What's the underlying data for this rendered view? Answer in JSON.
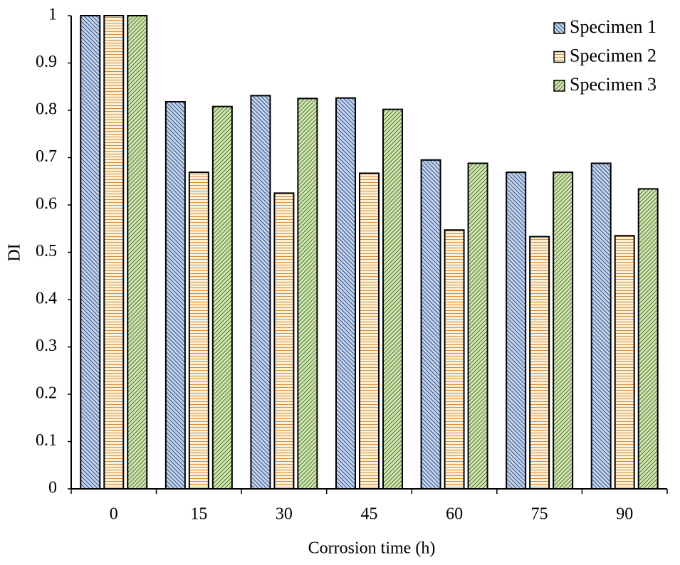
{
  "chart_data": {
    "type": "bar",
    "x_label": "Corrosion time (h)",
    "y_label": "DI",
    "categories": [
      "0",
      "15",
      "30",
      "45",
      "60",
      "75",
      "90"
    ],
    "series": [
      {
        "name": "Specimen 1",
        "color": "#c5d4ea",
        "values": [
          1,
          0.818,
          0.831,
          0.826,
          0.695,
          0.669,
          0.688
        ]
      },
      {
        "name": "Specimen 2",
        "color": "#fbf0d8",
        "values": [
          1,
          0.669,
          0.625,
          0.667,
          0.547,
          0.533,
          0.535
        ]
      },
      {
        "name": "Specimen 3",
        "color": "#d3e4b8",
        "values": [
          1,
          0.808,
          0.825,
          0.802,
          0.688,
          0.669,
          0.634
        ]
      }
    ],
    "ylim": [
      0,
      1
    ],
    "yticks": [
      0,
      0.1,
      0.2,
      0.3,
      0.4,
      0.5,
      0.6,
      0.7,
      0.8,
      0.9,
      1
    ],
    "legend": "top-right"
  }
}
